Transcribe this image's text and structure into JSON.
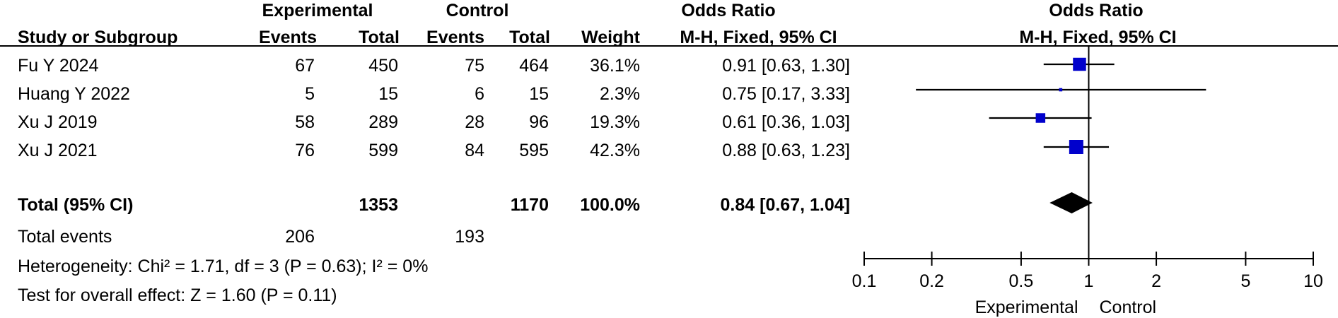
{
  "header": {
    "group_experimental": "Experimental",
    "group_control": "Control",
    "odds_ratio_text": "Odds Ratio",
    "odds_ratio_plot": "Odds Ratio",
    "col_study": "Study or Subgroup",
    "col_exp_events": "Events",
    "col_exp_total": "Total",
    "col_ctl_events": "Events",
    "col_ctl_total": "Total",
    "col_weight": "Weight",
    "col_method_text": "M-H, Fixed, 95% CI",
    "col_method_plot": "M-H, Fixed, 95% CI"
  },
  "studies": [
    {
      "name": "Fu Y 2024",
      "exp_events": "67",
      "exp_total": "450",
      "ctl_events": "75",
      "ctl_total": "464",
      "weight": "36.1%",
      "ci_text": "0.91 [0.63, 1.30]"
    },
    {
      "name": "Huang Y 2022",
      "exp_events": "5",
      "exp_total": "15",
      "ctl_events": "6",
      "ctl_total": "15",
      "weight": "2.3%",
      "ci_text": "0.75 [0.17, 3.33]"
    },
    {
      "name": "Xu J 2019",
      "exp_events": "58",
      "exp_total": "289",
      "ctl_events": "28",
      "ctl_total": "96",
      "weight": "19.3%",
      "ci_text": "0.61 [0.36, 1.03]"
    },
    {
      "name": "Xu J 2021",
      "exp_events": "76",
      "exp_total": "599",
      "ctl_events": "84",
      "ctl_total": "595",
      "weight": "42.3%",
      "ci_text": "0.88 [0.63, 1.23]"
    }
  ],
  "total": {
    "label": "Total (95% CI)",
    "exp_total": "1353",
    "ctl_total": "1170",
    "weight": "100.0%",
    "ci_text": "0.84 [0.67, 1.04]"
  },
  "events": {
    "label": "Total events",
    "exp": "206",
    "ctl": "193"
  },
  "footer": {
    "heterogeneity": "Heterogeneity: Chi² = 1.71, df = 3 (P = 0.63); I² = 0%",
    "overall_effect": "Test for overall effect: Z = 1.60 (P = 0.11)"
  },
  "colors": {
    "study_marker": "#0000cc",
    "line": "#000000",
    "diamond": "#000000"
  },
  "chart_data": {
    "type": "forest",
    "scale": "log",
    "xlim": [
      0.1,
      10
    ],
    "reference_line": 1,
    "tick_values": [
      0.1,
      0.2,
      0.5,
      1,
      2,
      5,
      10
    ],
    "tick_labels": [
      "0.1",
      "0.2",
      "0.5",
      "1",
      "2",
      "5",
      "10"
    ],
    "favours_left": "Experimental",
    "favours_right": "Control",
    "studies": [
      {
        "name": "Fu Y 2024",
        "or": 0.91,
        "lower": 0.63,
        "upper": 1.3,
        "weight": 36.1
      },
      {
        "name": "Huang Y 2022",
        "or": 0.75,
        "lower": 0.17,
        "upper": 3.33,
        "weight": 2.3
      },
      {
        "name": "Xu J 2019",
        "or": 0.61,
        "lower": 0.36,
        "upper": 1.03,
        "weight": 19.3
      },
      {
        "name": "Xu J 2021",
        "or": 0.88,
        "lower": 0.63,
        "upper": 1.23,
        "weight": 42.3
      }
    ],
    "pooled": {
      "name": "Total (95% CI)",
      "or": 0.84,
      "lower": 0.67,
      "upper": 1.04
    }
  }
}
